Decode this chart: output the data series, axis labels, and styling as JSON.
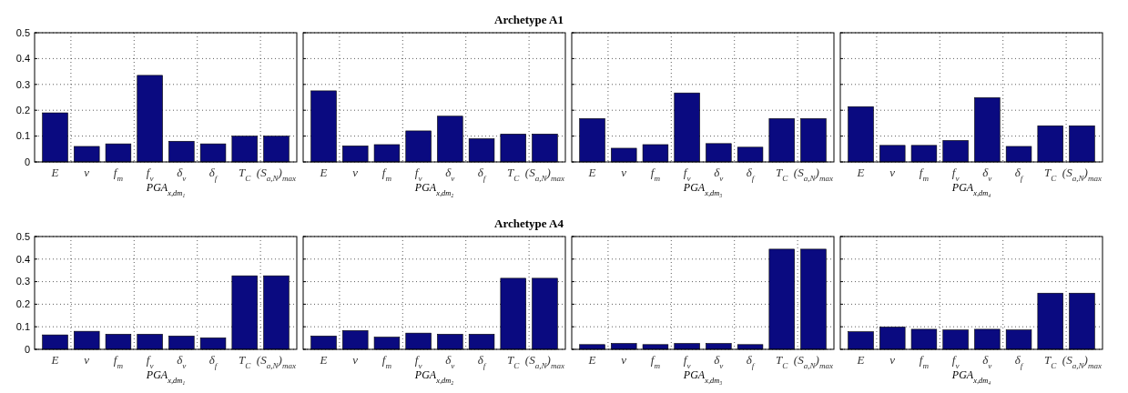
{
  "chart_data": [
    {
      "type": "bar",
      "xlabel": "PGA$_{x,dm₁}$",
      "categories": [
        "E",
        "v",
        "f$_{m}$",
        "f$_{v}$",
        "δ$_{v}$",
        "δ$_{f}$",
        "T$_{C}$",
        "(S$_{a,N}$)$_{max}$"
      ],
      "values": [
        0.19,
        0.06,
        0.07,
        0.335,
        0.08,
        0.07,
        0.1,
        0.1
      ],
      "color": "#0a0a80",
      "ylim": [
        0,
        0.5
      ],
      "yticks": [
        {
          "value": 0,
          "label": "0"
        },
        0.1,
        0.2,
        0.3,
        0.4,
        0.5
      ],
      "grid": true
    },
    {
      "type": "bar",
      "title": "Archetype A1",
      "xlabel": "PGA$_{x,dm₂}$",
      "categories": [
        "E",
        "v",
        "f$_{m}$",
        "f$_{v}$",
        "δ$_{v}$",
        "δ$_{f}$",
        "T$_{C}$",
        "(S$_{a,N}$)$_{max}$"
      ],
      "values": [
        0.275,
        0.062,
        0.067,
        0.12,
        0.177,
        0.09,
        0.108,
        0.108
      ],
      "color": "#0a0a80",
      "ylim": [
        0,
        0.5
      ],
      "yticks": [
        0,
        0.1,
        0.2,
        0.3,
        0.4,
        0.5
      ],
      "grid": true,
      "tick_labels": "x"
    },
    {
      "type": "bar",
      "xlabel": "PGA$_{x,dm₃}$",
      "categories": [
        "E",
        "v",
        "f$_{m}$",
        "f$_{v}$",
        "δ$_{v}$",
        "δ$_{f}$",
        "T$_{C}$",
        "(S$_{a,N}$)$_{max}$"
      ],
      "values": [
        0.168,
        0.053,
        0.067,
        0.267,
        0.071,
        0.057,
        0.168,
        0.168
      ],
      "color": "#0a0a80",
      "ylim": [
        0,
        0.5
      ],
      "yticks": [
        0,
        0.1,
        0.2,
        0.3,
        0.4,
        0.5
      ],
      "grid": true,
      "tick_labels": "x"
    },
    {
      "type": "bar",
      "xlabel": "PGA$_{x,dm₄}$",
      "categories": [
        "E",
        "v",
        "f$_{m}$",
        "f$_{v}$",
        "δ$_{v}$",
        "δ$_{f}$",
        "T$_{C}$",
        "(S$_{a,N}$)$_{max}$"
      ],
      "values": [
        0.214,
        0.064,
        0.064,
        0.083,
        0.249,
        0.06,
        0.14,
        0.14
      ],
      "color": "#0a0a80",
      "ylim": [
        0,
        0.5
      ],
      "yticks": [
        0,
        0.1,
        0.2,
        0.3,
        0.4,
        0.5
      ],
      "grid": true,
      "tick_labels": "x"
    },
    {
      "type": "bar",
      "xlabel": "PGA$_{x,dm₁}$",
      "categories": [
        "E",
        "v",
        "f$_{m}$",
        "f$_{v}$",
        "δ$_{v}$",
        "δ$_{f}$",
        "T$_{C}$",
        "(S$_{a,N}$)$_{max}$"
      ],
      "values": [
        0.064,
        0.08,
        0.067,
        0.067,
        0.059,
        0.051,
        0.326,
        0.326
      ],
      "color": "#0a0a80",
      "ylim": [
        0,
        0.5
      ],
      "yticks": [
        {
          "value": 0,
          "label": "0"
        },
        0.1,
        0.2,
        0.3,
        0.4,
        0.5
      ],
      "grid": true
    },
    {
      "type": "bar",
      "title": "Archetype A4",
      "xlabel": "PGA$_{x,dm₂}$",
      "categories": [
        "E",
        "v",
        "f$_{m}$",
        "f$_{v}$",
        "δ$_{v}$",
        "δ$_{f}$",
        "T$_{C}$",
        "(S$_{a,N}$)$_{max}$"
      ],
      "values": [
        0.059,
        0.083,
        0.054,
        0.072,
        0.067,
        0.067,
        0.315,
        0.315
      ],
      "color": "#0a0a80",
      "ylim": [
        0,
        0.5
      ],
      "yticks": [
        0,
        0.1,
        0.2,
        0.3,
        0.4,
        0.5
      ],
      "grid": true,
      "tick_labels": "x"
    },
    {
      "type": "bar",
      "xlabel": "PGA$_{x,dm₃}$",
      "categories": [
        "E",
        "v",
        "f$_{m}$",
        "f$_{v}$",
        "δ$_{v}$",
        "δ$_{f}$",
        "T$_{C}$",
        "(S$_{a,N}$)$_{max}$"
      ],
      "values": [
        0.021,
        0.026,
        0.021,
        0.026,
        0.026,
        0.021,
        0.444,
        0.444
      ],
      "color": "#0a0a80",
      "ylim": [
        0,
        0.5
      ],
      "yticks": [
        0,
        0.1,
        0.2,
        0.3,
        0.4,
        0.5
      ],
      "grid": true,
      "tick_labels": "x"
    },
    {
      "type": "bar",
      "xlabel": "PGA$_{x,dm₄}$",
      "categories": [
        "E",
        "v",
        "f$_{m}$",
        "f$_{v}$",
        "δ$_{v}$",
        "δ$_{f}$",
        "T$_{C}$",
        "(S$_{a,N}$)$_{max}$"
      ],
      "values": [
        0.078,
        0.099,
        0.089,
        0.086,
        0.089,
        0.086,
        0.249,
        0.249
      ],
      "color": "#0a0a80",
      "ylim": [
        0,
        0.5
      ],
      "yticks": [
        0,
        0.1,
        0.2,
        0.3,
        0.4,
        0.5
      ],
      "grid": true,
      "tick_labels": "x"
    }
  ]
}
